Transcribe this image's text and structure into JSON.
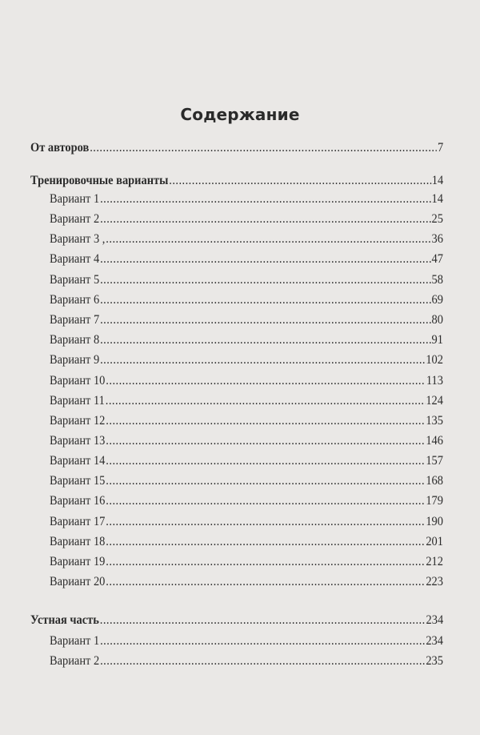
{
  "title": "Содержание",
  "entries": [
    {
      "label": "От авторов",
      "page": "7",
      "level": 1
    },
    {
      "label": "Тренировочные вариaнты",
      "page": "14",
      "level": 1
    },
    {
      "label": "Вариант 1",
      "page": "14",
      "level": 2
    },
    {
      "label": "Вариант 2",
      "page": "25",
      "level": 2
    },
    {
      "label": "Вариант 3 ,",
      "page": "36",
      "level": 2
    },
    {
      "label": "Вариант 4",
      "page": "47",
      "level": 2
    },
    {
      "label": "Вариант 5",
      "page": "58",
      "level": 2
    },
    {
      "label": "Вариант 6",
      "page": "69",
      "level": 2
    },
    {
      "label": "Вариант 7",
      "page": "80",
      "level": 2
    },
    {
      "label": "Вариант 8",
      "page": "91",
      "level": 2
    },
    {
      "label": "Вариант 9",
      "page": "102",
      "level": 2
    },
    {
      "label": "Вариант 10",
      "page": "113",
      "level": 2
    },
    {
      "label": "Вариант 11",
      "page": "124",
      "level": 2
    },
    {
      "label": "Вариант 12",
      "page": "135",
      "level": 2
    },
    {
      "label": "Вариант 13",
      "page": "146",
      "level": 2
    },
    {
      "label": "Вариант 14",
      "page": "157",
      "level": 2
    },
    {
      "label": "Вариант 15",
      "page": "168",
      "level": 2
    },
    {
      "label": "Вариант 16",
      "page": "179",
      "level": 2
    },
    {
      "label": "Вариант 17",
      "page": "190",
      "level": 2
    },
    {
      "label": "Вариант 18",
      "page": "201",
      "level": 2
    },
    {
      "label": "Вариант 19",
      "page": "212",
      "level": 2
    },
    {
      "label": "Вариант 20",
      "page": "223",
      "level": 2
    },
    {
      "label": "Устная часть",
      "page": "234",
      "level": 1
    },
    {
      "label": "Вариант 1",
      "page": "234",
      "level": 2
    },
    {
      "label": "Вариант 2",
      "page": "235",
      "level": 2
    }
  ]
}
